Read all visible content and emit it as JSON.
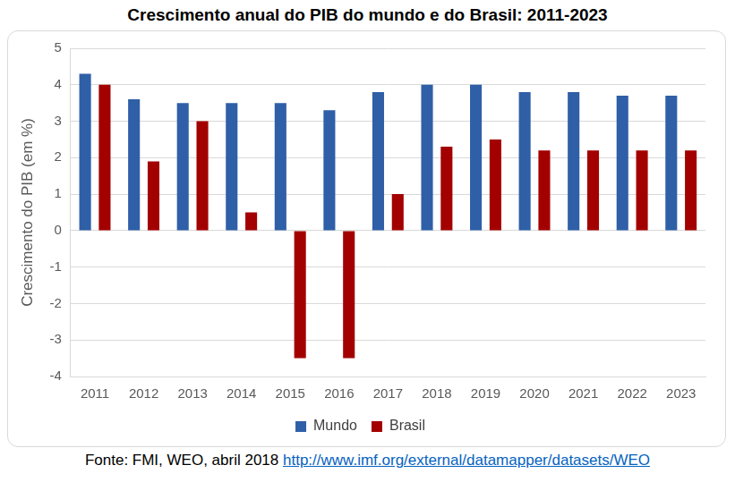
{
  "chart_data": {
    "type": "bar",
    "title": "Crescimento anual do PIB do mundo e do Brasil: 2011-2023",
    "y_label": "Crescimento do PIB (em %)",
    "categories": [
      "2011",
      "2012",
      "2013",
      "2014",
      "2015",
      "2016",
      "2017",
      "2018",
      "2019",
      "2020",
      "2021",
      "2022",
      "2023"
    ],
    "series": [
      {
        "name": "Mundo",
        "color": "#2f5fa7",
        "values": [
          4.3,
          3.6,
          3.5,
          3.5,
          3.5,
          3.3,
          3.8,
          4.0,
          4.0,
          3.8,
          3.8,
          3.7,
          3.7
        ]
      },
      {
        "name": "Brasil",
        "color": "#a30000",
        "values": [
          4.0,
          1.9,
          3.0,
          0.5,
          -3.5,
          -3.5,
          1.0,
          2.3,
          2.5,
          2.2,
          2.2,
          2.2,
          2.2
        ]
      }
    ],
    "ylim": [
      -4,
      5
    ],
    "yticks": [
      -4,
      -3,
      -2,
      -1,
      0,
      1,
      2,
      3,
      4,
      5
    ],
    "grid": true,
    "legend": "bottom",
    "annotations": [
      {
        "text": "Fonte: FMI, WEO, abril 2018",
        "link": "http://www.imf.org/external/datamapper/datasets/WEO"
      }
    ]
  }
}
